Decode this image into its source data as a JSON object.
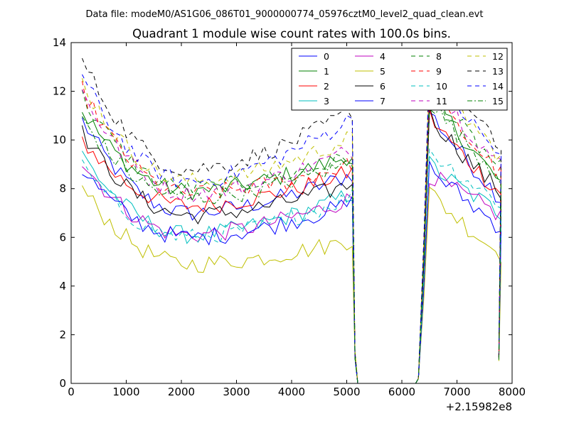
{
  "figure": {
    "suptitle": "Data file: modeM0/AS1G06_086T01_9000000774_05976cztM0_level2_quad_clean.evt"
  },
  "chart_data": {
    "type": "line",
    "title": "Quadrant 1 module wise count rates with 100.0s bins.",
    "xlabel": "",
    "ylabel": "",
    "xlim": [
      0,
      8000
    ],
    "ylim": [
      0,
      14
    ],
    "x_ticks": [
      0,
      1000,
      2000,
      3000,
      4000,
      5000,
      6000,
      7000,
      8000
    ],
    "y_ticks": [
      0,
      2,
      4,
      6,
      8,
      10,
      12,
      14
    ],
    "x_offset_label": "+2.15982e8",
    "grid": false,
    "legend": {
      "position": "top-right",
      "columns": 4
    },
    "segments": [
      {
        "x_start": 200,
        "x_end": 5100,
        "step": 100
      },
      {
        "x_start": 6300,
        "x_end": 7750,
        "step": 100
      }
    ],
    "series": [
      {
        "name": "0",
        "color": "#0000ff",
        "dash": "solid",
        "seg1_start": 10.8,
        "seg1_min": 7.0,
        "seg1_end": 8.6,
        "seg2_peak": 11.2,
        "seg2_end": 7.6
      },
      {
        "name": "1",
        "color": "#008000",
        "dash": "solid",
        "seg1_start": 11.2,
        "seg1_min": 7.9,
        "seg1_end": 9.4,
        "seg2_peak": 12.0,
        "seg2_end": 8.2
      },
      {
        "name": "2",
        "color": "#ff0000",
        "dash": "solid",
        "seg1_start": 10.0,
        "seg1_min": 7.3,
        "seg1_end": 8.7,
        "seg2_peak": 11.0,
        "seg2_end": 7.8
      },
      {
        "name": "3",
        "color": "#00bfbf",
        "dash": "solid",
        "seg1_start": 9.4,
        "seg1_min": 6.1,
        "seg1_end": 7.8,
        "seg2_peak": 9.0,
        "seg2_end": 7.0
      },
      {
        "name": "4",
        "color": "#bf00bf",
        "dash": "solid",
        "seg1_start": 9.1,
        "seg1_min": 6.1,
        "seg1_end": 7.6,
        "seg2_peak": 8.6,
        "seg2_end": 6.9
      },
      {
        "name": "5",
        "color": "#bfbf00",
        "dash": "solid",
        "seg1_start": 8.0,
        "seg1_min": 4.9,
        "seg1_end": 5.9,
        "seg2_peak": 7.9,
        "seg2_end": 5.3
      },
      {
        "name": "6",
        "color": "#000000",
        "dash": "solid",
        "seg1_start": 10.3,
        "seg1_min": 6.9,
        "seg1_end": 8.2,
        "seg2_peak": 11.1,
        "seg2_end": 7.8
      },
      {
        "name": "7",
        "color": "#0000ff",
        "dash": "solid",
        "seg1_start": 8.8,
        "seg1_min": 6.0,
        "seg1_end": 7.4,
        "seg2_peak": 8.9,
        "seg2_end": 6.4
      },
      {
        "name": "8",
        "color": "#008000",
        "dash": "dashed",
        "seg1_start": 11.8,
        "seg1_min": 8.0,
        "seg1_end": 9.3,
        "seg2_peak": 12.1,
        "seg2_end": 8.8
      },
      {
        "name": "9",
        "color": "#ff0000",
        "dash": "dashed",
        "seg1_start": 12.1,
        "seg1_min": 7.8,
        "seg1_end": 9.0,
        "seg2_peak": 12.0,
        "seg2_end": 8.6
      },
      {
        "name": "10",
        "color": "#00bfbf",
        "dash": "dashed",
        "seg1_start": 8.9,
        "seg1_min": 6.0,
        "seg1_end": 7.7,
        "seg2_peak": 9.6,
        "seg2_end": 7.4
      },
      {
        "name": "11",
        "color": "#bf00bf",
        "dash": "dashed",
        "seg1_start": 12.0,
        "seg1_min": 7.8,
        "seg1_end": 9.6,
        "seg2_peak": 12.6,
        "seg2_end": 8.9
      },
      {
        "name": "12",
        "color": "#bfbf00",
        "dash": "dashed",
        "seg1_start": 12.4,
        "seg1_min": 8.3,
        "seg1_end": 10.1,
        "seg2_peak": 12.9,
        "seg2_end": 9.3
      },
      {
        "name": "13",
        "color": "#000000",
        "dash": "dashed",
        "seg1_start": 13.3,
        "seg1_min": 8.8,
        "seg1_end": 11.2,
        "seg2_peak": 13.4,
        "seg2_end": 9.6
      },
      {
        "name": "14",
        "color": "#0000ff",
        "dash": "dashed",
        "seg1_start": 12.6,
        "seg1_min": 8.3,
        "seg1_end": 10.9,
        "seg2_peak": 13.0,
        "seg2_end": 9.3
      },
      {
        "name": "15",
        "color": "#008000",
        "dash": "dashdot",
        "seg1_start": 10.9,
        "seg1_min": 7.6,
        "seg1_end": 9.1,
        "seg2_peak": 11.6,
        "seg2_end": 8.5
      }
    ]
  }
}
